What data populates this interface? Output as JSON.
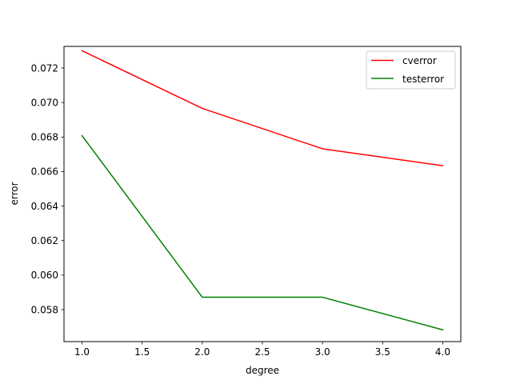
{
  "chart_data": {
    "type": "line",
    "title": "",
    "xlabel": "degree",
    "ylabel": "error",
    "x": [
      1.0,
      2.0,
      3.0,
      4.0
    ],
    "xlim": [
      0.85,
      4.15
    ],
    "ylim": [
      0.05615,
      0.07325
    ],
    "xticks": [
      1.0,
      1.5,
      2.0,
      2.5,
      3.0,
      3.5,
      4.0
    ],
    "xtick_labels": [
      "1.0",
      "1.5",
      "2.0",
      "2.5",
      "3.0",
      "3.5",
      "4.0"
    ],
    "yticks": [
      0.058,
      0.06,
      0.062,
      0.064,
      0.066,
      0.068,
      0.07,
      0.072
    ],
    "ytick_labels": [
      "0.058",
      "0.060",
      "0.062",
      "0.064",
      "0.066",
      "0.068",
      "0.070",
      "0.072"
    ],
    "grid": false,
    "legend_position": "upper right",
    "series": [
      {
        "name": "cverror",
        "color": "#ff0000",
        "values": [
          0.073,
          0.06966,
          0.06732,
          0.06634
        ]
      },
      {
        "name": "testerror",
        "color": "#008000",
        "values": [
          0.06808,
          0.05872,
          0.05872,
          0.05683
        ]
      }
    ]
  }
}
